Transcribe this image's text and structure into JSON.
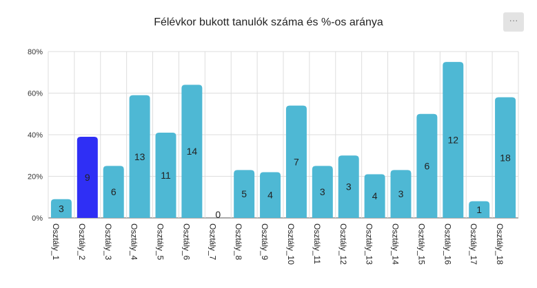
{
  "menu": {
    "label": "···"
  },
  "chart_data": {
    "type": "bar",
    "title": "Félévkor bukott tanulók száma és %-os aránya",
    "categories": [
      "Osztály_1",
      "Osztály_2",
      "Osztály_3",
      "Osztály_4",
      "Osztály_5",
      "Osztály_6",
      "Osztály_7",
      "Osztály_8",
      "Osztály_9",
      "Osztály_10",
      "Osztály_11",
      "Osztály_12",
      "Osztály_13",
      "Osztály_14",
      "Osztály_15",
      "Osztály_16",
      "Osztály_17",
      "Osztály_18"
    ],
    "values": [
      9,
      39,
      25,
      59,
      41,
      64,
      0,
      23,
      22,
      54,
      25,
      30,
      21,
      23,
      50,
      75,
      8,
      58
    ],
    "data_labels": [
      "3",
      "9",
      "6",
      "13",
      "11",
      "14",
      "0",
      "5",
      "4",
      "7",
      "3",
      "3",
      "4",
      "3",
      "6",
      "12",
      "1",
      "18"
    ],
    "highlight_index": 1,
    "ylim": [
      0,
      80
    ],
    "yticks": [
      "0%",
      "20%",
      "40%",
      "60%",
      "80%"
    ],
    "ytick_values": [
      0,
      20,
      40,
      60,
      80
    ],
    "grid": true,
    "colors": {
      "bar": "#4eb8d4",
      "highlight": "#2f2ff5",
      "grid": "#dddddd",
      "axis": "#555555"
    }
  }
}
